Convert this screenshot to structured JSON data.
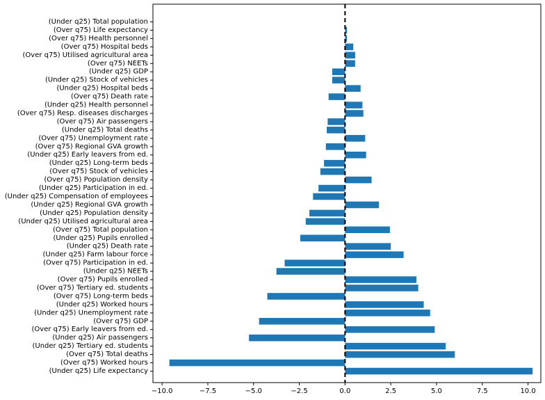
{
  "chart_data": {
    "type": "bar",
    "orientation": "horizontal",
    "title": "",
    "xlabel": "",
    "ylabel": "",
    "xlim": [
      -10.5,
      10.7
    ],
    "grid": false,
    "zero_line": "dashed",
    "bar_color": "#1f77b4",
    "xticks": [
      -10.0,
      -7.5,
      -5.0,
      -2.5,
      0.0,
      2.5,
      5.0,
      7.5,
      10.0
    ],
    "xtick_labels": [
      "−10.0",
      "−7.5",
      "−5.0",
      "−2.5",
      "0.0",
      "2.5",
      "5.0",
      "7.5",
      "10.0"
    ],
    "categories": [
      "(Under q25) Total population",
      "(Over q75) Life expectancy",
      "(Over q75) Health personnel",
      "(Over q75) Hospital beds",
      "(Over q75) Utilised agricultural area",
      "(Over q75) NEETs",
      "(Under q25) GDP",
      "(Under q25) Stock of vehicles",
      "(Under q25) Hospital beds",
      "(Over q75) Death rate",
      "(Under q25) Health personnel",
      "(Over q75) Resp. diseases discharges",
      "(Over q75) Air passengers",
      "(Under q25) Total deaths",
      "(Over q75) Unemployment rate",
      "(Over q75) Regional GVA growth",
      "(Under q25) Early leavers from ed.",
      "(Under q25) Long-term beds",
      "(Over q75) Stock of vehicles",
      "(Over q75) Population density",
      "(Under q25) Participation in ed.",
      "(Under q25) Compensation of employees",
      "(Under q25) Regional GVA growth",
      "(Under q25) Population density",
      "(Under q25) Utilised agricultural area",
      "(Over q75) Total population",
      "(Under q25) Pupils enrolled",
      "(Under q25) Death rate",
      "(Under q25) Farm labour force",
      "(Over q75) Participation in ed.",
      "(Under q25) NEETs",
      "(Over q75) Pupils enrolled",
      "(Over q75) Tertiary ed. students",
      "(Over q75) Long-term beds",
      "(Under q25) Worked hours",
      "(Under q25) Unemployment rate",
      "(Over q75) GDP",
      "(Over q75) Early leavers from ed.",
      "(Under q25) Air passengers",
      "(Under q25) Tertiary ed. students",
      "(Over q75) Total deaths",
      "(Over q75) Worked hours",
      "(Under q25) Life expectancy"
    ],
    "values": [
      0.0,
      0.1,
      0.1,
      0.45,
      0.55,
      0.55,
      -0.7,
      -0.7,
      0.85,
      -0.9,
      0.95,
      1.0,
      -0.95,
      -1.0,
      1.1,
      -1.05,
      1.15,
      -1.15,
      -1.35,
      1.45,
      -1.45,
      -1.75,
      1.85,
      -1.95,
      -2.15,
      2.45,
      -2.45,
      2.5,
      3.2,
      -3.3,
      -3.75,
      3.9,
      4.0,
      -4.25,
      4.3,
      4.65,
      -4.7,
      4.9,
      -5.25,
      5.5,
      6.0,
      -9.6,
      10.25
    ]
  }
}
